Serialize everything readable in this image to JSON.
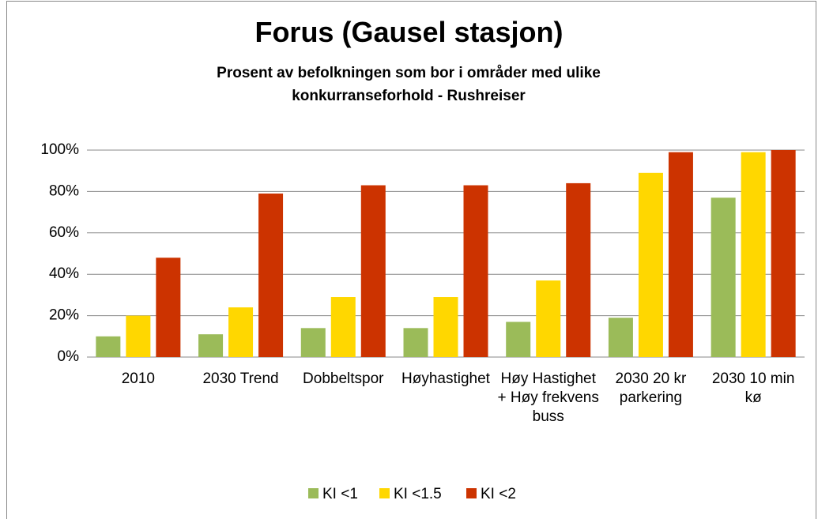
{
  "chart_data": {
    "type": "bar",
    "title": "Forus (Gausel stasjon)",
    "subtitle": "Prosent av befolkningen som bor i områder med ulike konkurranseforhold - Rushreiser",
    "categories": [
      "2010",
      "2030 Trend",
      "Dobbeltspor",
      "Høyhastighet",
      "Høy Hastighet + Høy frekvens buss",
      "2030 20 kr parkering",
      "2030 10 min kø"
    ],
    "series": [
      {
        "name": "KI <1",
        "color": "#9bbb59",
        "values": [
          10,
          11,
          14,
          14,
          17,
          19,
          77
        ]
      },
      {
        "name": "KI <1.5",
        "color": "#ffd700",
        "values": [
          20,
          24,
          29,
          29,
          37,
          89,
          99
        ]
      },
      {
        "name": "KI <2",
        "color": "#cc3300",
        "values": [
          48,
          79,
          83,
          83,
          84,
          99,
          100
        ]
      }
    ],
    "ylim": [
      0,
      100
    ],
    "yticks": [
      {
        "value": 0,
        "label": "0%"
      },
      {
        "value": 20,
        "label": "20%"
      },
      {
        "value": 40,
        "label": "40%"
      },
      {
        "value": 60,
        "label": "60%"
      },
      {
        "value": 80,
        "label": "80%"
      },
      {
        "value": 100,
        "label": "100%"
      }
    ],
    "grid": true,
    "legend": "bottom"
  }
}
